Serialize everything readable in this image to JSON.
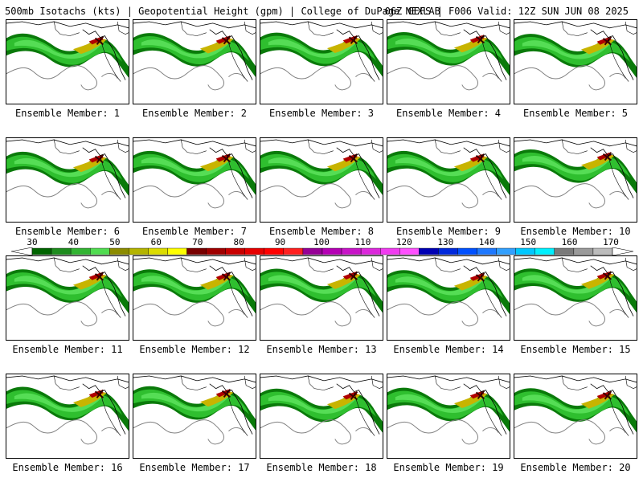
{
  "title": {
    "left": "500mb Isotachs (kts) | Geopotential Height (gpm) | College of DuPage NEXLAB",
    "right": "06Z GEFS | F006 Valid: 12Z SUN JUN 08 2025"
  },
  "members": [
    "Ensemble Member: 1",
    "Ensemble Member: 2",
    "Ensemble Member: 3",
    "Ensemble Member: 4",
    "Ensemble Member: 5",
    "Ensemble Member: 6",
    "Ensemble Member: 7",
    "Ensemble Member: 8",
    "Ensemble Member: 9",
    "Ensemble Member: 10",
    "Ensemble Member: 11",
    "Ensemble Member: 12",
    "Ensemble Member: 13",
    "Ensemble Member: 14",
    "Ensemble Member: 15",
    "Ensemble Member: 16",
    "Ensemble Member: 17",
    "Ensemble Member: 18",
    "Ensemble Member: 19",
    "Ensemble Member: 20"
  ],
  "colorbar": {
    "labels": [
      "30",
      "40",
      "50",
      "60",
      "70",
      "80",
      "90",
      "100",
      "110",
      "120",
      "130",
      "140",
      "150",
      "160",
      "170"
    ],
    "colors": [
      "#006400",
      "#1e8c1e",
      "#32b432",
      "#50dc50",
      "#8c8c00",
      "#b4b400",
      "#dcdc00",
      "#ffff00",
      "#780000",
      "#a00000",
      "#c80000",
      "#e60000",
      "#ff0000",
      "#ff2020",
      "#960096",
      "#b400b4",
      "#c814c8",
      "#dc28dc",
      "#f03cf0",
      "#ff50ff",
      "#0000b4",
      "#0028dc",
      "#0050ff",
      "#1e78ff",
      "#32a0ff",
      "#00c8ff",
      "#00f0ff",
      "#7a7a7a",
      "#9a9a9a",
      "#bcbcbc"
    ]
  },
  "map_colors": {
    "jet_dark": "#0a7a0a",
    "jet_mid": "#2fbf2f",
    "jet_light": "#55dd55",
    "jet_core": "#c8b400",
    "jet_max": "#b00000",
    "contour": "#000000",
    "height_line": "#808080"
  }
}
